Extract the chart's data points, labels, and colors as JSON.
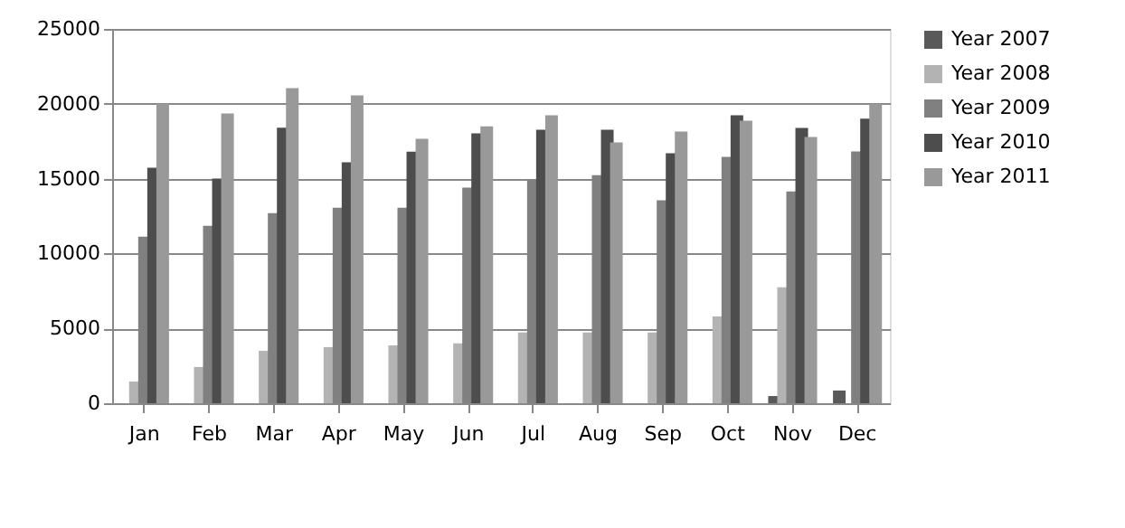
{
  "chart_data": {
    "type": "bar",
    "categories": [
      "Jan",
      "Feb",
      "Mar",
      "Apr",
      "May",
      "Jun",
      "Jul",
      "Aug",
      "Sep",
      "Oct",
      "Nov",
      "Dec"
    ],
    "series": [
      {
        "name": "Year 2007",
        "color": "#595959",
        "values": [
          null,
          null,
          null,
          null,
          null,
          null,
          null,
          null,
          null,
          null,
          480,
          850
        ]
      },
      {
        "name": "Year 2008",
        "color": "#b3b3b3",
        "values": [
          1450,
          2420,
          3500,
          3750,
          3870,
          4000,
          4720,
          4720,
          4720,
          5800,
          7740,
          null
        ]
      },
      {
        "name": "Year 2009",
        "color": "#808080",
        "values": [
          11130,
          11850,
          12700,
          13060,
          13060,
          14400,
          14960,
          15240,
          13550,
          16450,
          14150,
          16820
        ]
      },
      {
        "name": "Year 2010",
        "color": "#4d4d4d",
        "values": [
          15730,
          15000,
          18400,
          16090,
          16800,
          18030,
          18270,
          18270,
          16700,
          19230,
          18390,
          19000
        ]
      },
      {
        "name": "Year 2011",
        "color": "#999999",
        "values": [
          20000,
          19350,
          21050,
          20560,
          17660,
          18500,
          19230,
          17420,
          18150,
          18870,
          17780,
          20000
        ]
      }
    ],
    "ylim": [
      0,
      25000
    ],
    "yticks": [
      0,
      5000,
      10000,
      15000,
      20000,
      25000
    ],
    "grid": "y",
    "legend": "right"
  }
}
